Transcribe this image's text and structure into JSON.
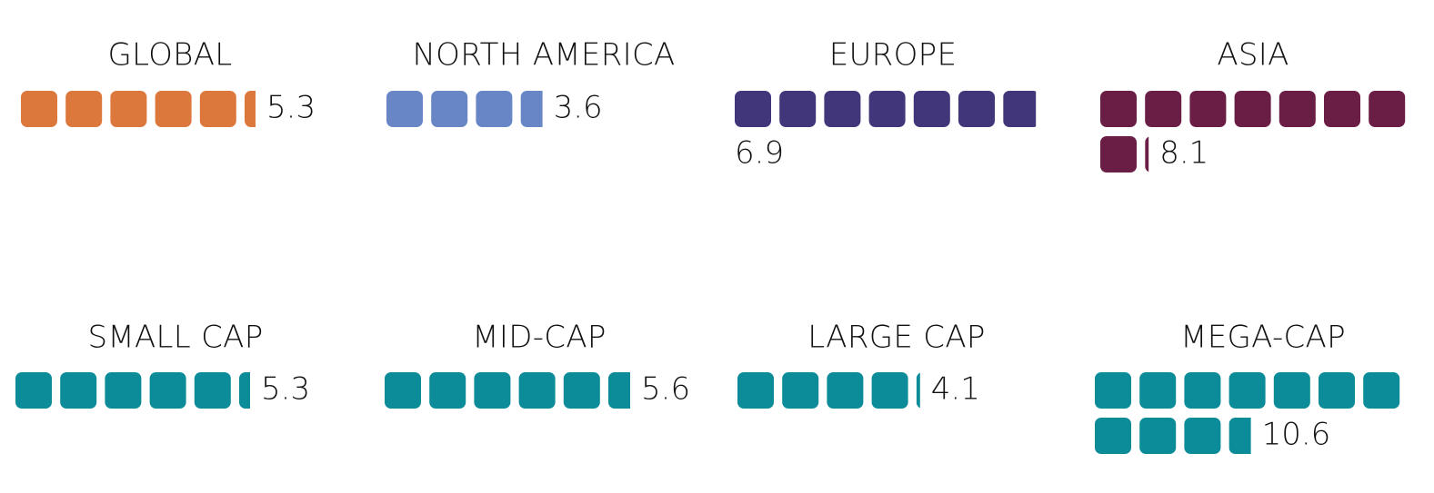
{
  "chart_data": [
    {
      "type": "bar",
      "title": "GLOBAL",
      "value": 5.3,
      "color": "#DC783C"
    },
    {
      "type": "bar",
      "title": "NORTH AMERICA",
      "value": 3.6,
      "color": "#6886C5"
    },
    {
      "type": "bar",
      "title": "EUROPE",
      "value": 6.9,
      "color": "#41367A"
    },
    {
      "type": "bar",
      "title": "ASIA",
      "value": 8.1,
      "color": "#6B1E45"
    },
    {
      "type": "bar",
      "title": "SMALL CAP",
      "value": 5.3,
      "color": "#0B8C98"
    },
    {
      "type": "bar",
      "title": "MID-CAP",
      "value": 5.6,
      "color": "#0B8C98"
    },
    {
      "type": "bar",
      "title": "LARGE CAP",
      "value": 4.1,
      "color": "#0B8C98"
    },
    {
      "type": "bar",
      "title": "MEGA-CAP",
      "value": 10.6,
      "color": "#0B8C98"
    }
  ]
}
